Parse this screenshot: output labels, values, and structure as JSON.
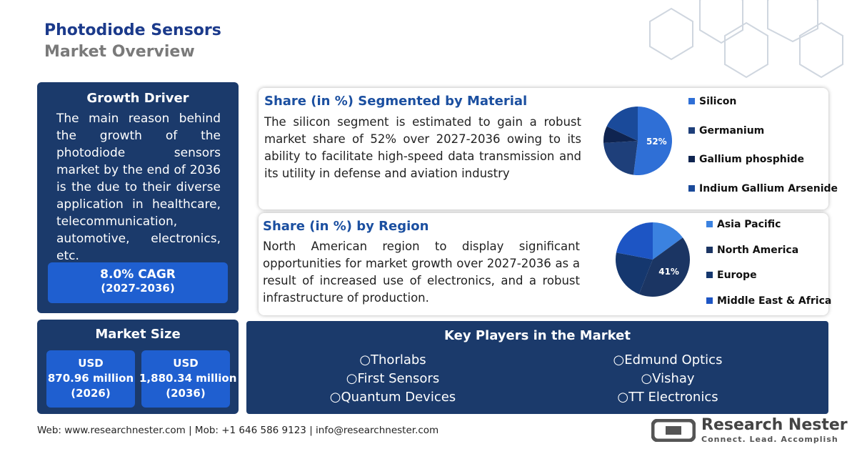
{
  "header": {
    "title": "Photodiode Sensors",
    "subtitle": "Market Overview"
  },
  "growth_driver": {
    "title": "Growth Driver",
    "text": "The main reason behind the growth of the photodiode sensors market by the end of 2036 is the due to their diverse application in healthcare, telecommunication, automotive, electronics, etc.",
    "cagr": "8.0% CAGR",
    "period": "(2027-2036)"
  },
  "market_size": {
    "title": "Market Size",
    "items": [
      {
        "currency": "USD",
        "amount": "870.96 million",
        "year": "(2026)"
      },
      {
        "currency": "USD",
        "amount": "1,880.34 million",
        "year": "(2036)"
      }
    ]
  },
  "material": {
    "heading": "Share (in %) Segmented by Material",
    "text": "The silicon segment is estimated to gain a robust market share of 52% over 2027-2036 owing to its ability to facilitate high-speed data transmission and its utility in defense and aviation industry",
    "chart": {
      "type": "pie",
      "categories": [
        "Silicon",
        "Germanium",
        "Gallium phosphide",
        "Indium Gallium Arsenide"
      ],
      "values": [
        52,
        22,
        8,
        18
      ],
      "value_labels": [
        "52%",
        null,
        null,
        null
      ],
      "colors": [
        "#2f6fd6",
        "#1e3f7a",
        "#0f2450",
        "#1a4a9a"
      ]
    }
  },
  "region": {
    "heading": "Share (in %) by Region",
    "text": "North American region to display significant opportunities for market growth over 2027-2036 as a result of increased use of electronics, and a robust infrastructure of production.",
    "chart": {
      "type": "pie",
      "categories": [
        "Asia Pacific",
        "North America",
        "Europe",
        "Middle East & Africa"
      ],
      "values": [
        15,
        41,
        22,
        22
      ],
      "value_labels": [
        null,
        "41%",
        null,
        null
      ],
      "colors": [
        "#3b82e0",
        "#1b3563",
        "#15376e",
        "#1d55c4"
      ]
    }
  },
  "key_players": {
    "title": "Key Players in the Market",
    "players": [
      "Thorlabs",
      "Edmund Optics",
      "First Sensors",
      "Vishay",
      "Quantum Devices",
      "TT Electronics"
    ]
  },
  "footer": {
    "web": "Web: www.researchnester.com",
    "mob": "| Mob: +1 646 586 9123",
    "email": "| info@researchnester.com"
  },
  "logo": {
    "name": "Research Nester",
    "tagline": "Connect. Lead. Accomplish"
  }
}
